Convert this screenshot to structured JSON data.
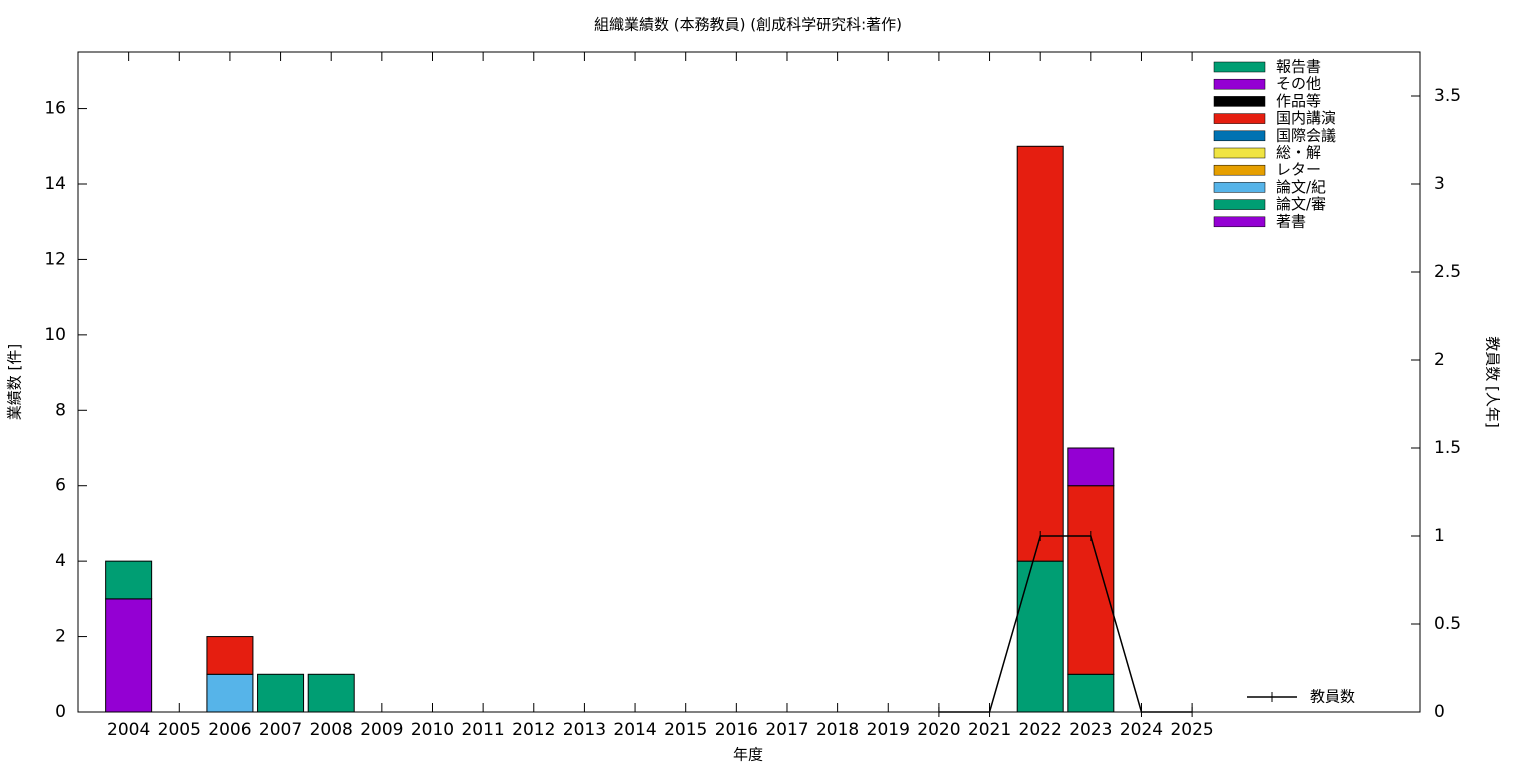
{
  "chart_data": {
    "type": "bar",
    "title": "組織業績数 (本務教員) (創成科学研究科:著作)",
    "x_label": "年度",
    "y_label": "業績数 [件]",
    "y2_label": "教員数 [人年]",
    "stacked": true,
    "categories": [
      "2004",
      "2005",
      "2006",
      "2007",
      "2008",
      "2009",
      "2010",
      "2011",
      "2012",
      "2013",
      "2014",
      "2015",
      "2016",
      "2017",
      "2018",
      "2019",
      "2020",
      "2021",
      "2022",
      "2023",
      "2024",
      "2025"
    ],
    "series": [
      {
        "name": "著書",
        "color": "#9400d3",
        "values": [
          3,
          0,
          0,
          0,
          0,
          0,
          0,
          0,
          0,
          0,
          0,
          0,
          0,
          0,
          0,
          0,
          0,
          0,
          0,
          0,
          0,
          0
        ]
      },
      {
        "name": "論文/審",
        "color": "#009e73",
        "values": [
          1,
          0,
          0,
          1,
          1,
          0,
          0,
          0,
          0,
          0,
          0,
          0,
          0,
          0,
          0,
          0,
          0,
          0,
          4,
          1,
          0,
          0
        ]
      },
      {
        "name": "論文/紀",
        "color": "#56b4e9",
        "values": [
          0,
          0,
          1,
          0,
          0,
          0,
          0,
          0,
          0,
          0,
          0,
          0,
          0,
          0,
          0,
          0,
          0,
          0,
          0,
          0,
          0,
          0
        ]
      },
      {
        "name": "レター",
        "color": "#e69f00",
        "values": [
          0,
          0,
          0,
          0,
          0,
          0,
          0,
          0,
          0,
          0,
          0,
          0,
          0,
          0,
          0,
          0,
          0,
          0,
          0,
          0,
          0,
          0
        ]
      },
      {
        "name": "総・解",
        "color": "#f0e442",
        "values": [
          0,
          0,
          0,
          0,
          0,
          0,
          0,
          0,
          0,
          0,
          0,
          0,
          0,
          0,
          0,
          0,
          0,
          0,
          0,
          0,
          0,
          0
        ]
      },
      {
        "name": "国際会議",
        "color": "#0072b2",
        "values": [
          0,
          0,
          0,
          0,
          0,
          0,
          0,
          0,
          0,
          0,
          0,
          0,
          0,
          0,
          0,
          0,
          0,
          0,
          0,
          0,
          0,
          0
        ]
      },
      {
        "name": "国内講演",
        "color": "#e51e10",
        "values": [
          0,
          0,
          1,
          0,
          0,
          0,
          0,
          0,
          0,
          0,
          0,
          0,
          0,
          0,
          0,
          0,
          0,
          0,
          11,
          5,
          0,
          0
        ]
      },
      {
        "name": "作品等",
        "color": "#000000",
        "values": [
          0,
          0,
          0,
          0,
          0,
          0,
          0,
          0,
          0,
          0,
          0,
          0,
          0,
          0,
          0,
          0,
          0,
          0,
          0,
          0,
          0,
          0
        ]
      },
      {
        "name": "その他",
        "color": "#9400d3",
        "values": [
          0,
          0,
          0,
          0,
          0,
          0,
          0,
          0,
          0,
          0,
          0,
          0,
          0,
          0,
          0,
          0,
          0,
          0,
          0,
          1,
          0,
          0
        ]
      },
      {
        "name": "報告書",
        "color": "#009e73",
        "values": [
          0,
          0,
          0,
          0,
          0,
          0,
          0,
          0,
          0,
          0,
          0,
          0,
          0,
          0,
          0,
          0,
          0,
          0,
          0,
          0,
          0,
          0
        ]
      },
      {
        "name": "教員数",
        "color": "#000000",
        "axis": "y2",
        "values": [
          null,
          null,
          null,
          null,
          null,
          null,
          null,
          null,
          null,
          null,
          null,
          null,
          null,
          null,
          null,
          null,
          0,
          0,
          1,
          1,
          0,
          0
        ]
      }
    ],
    "ylim": [
      0,
      17.5
    ],
    "yticks": [
      0,
      2,
      4,
      6,
      8,
      10,
      12,
      14,
      16
    ],
    "y2lim": [
      0,
      3.75
    ],
    "y2ticks": [
      0,
      0.5,
      1,
      1.5,
      2,
      2.5,
      3,
      3.5
    ],
    "grid": false
  }
}
